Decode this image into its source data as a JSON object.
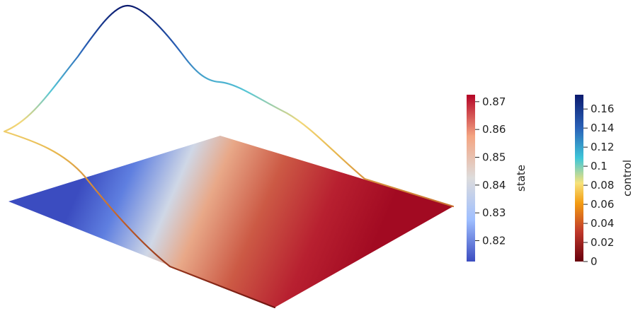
{
  "colorbars": {
    "state": {
      "title": "state",
      "range": [
        0.8125,
        0.8725
      ],
      "ticks": [
        0.82,
        0.83,
        0.84,
        0.85,
        0.86,
        0.87
      ],
      "tick_labels": [
        "0.82",
        "0.83",
        "0.84",
        "0.85",
        "0.86",
        "0.87"
      ],
      "colormap": [
        "#3b4cc0",
        "#9fbfff",
        "#dddcdc",
        "#f4a582",
        "#b40426"
      ]
    },
    "control": {
      "title": "control",
      "range": [
        0,
        0.175
      ],
      "ticks": [
        0,
        0.02,
        0.04,
        0.06,
        0.08,
        0.1,
        0.12,
        0.14,
        0.16
      ],
      "tick_labels": [
        "0",
        "0.02",
        "0.04",
        "0.06",
        "0.08",
        "0.1",
        "0.12",
        "0.14",
        "0.16"
      ],
      "colormap": [
        "#67000d",
        "#c0392b",
        "#f39c12",
        "#f7e27a",
        "#3ec6d8",
        "#2a62b8",
        "#0b1a6e"
      ]
    }
  },
  "colors": {
    "background": "#ffffff",
    "plane_low": "#3b4cc0",
    "plane_high": "#b40426"
  }
}
